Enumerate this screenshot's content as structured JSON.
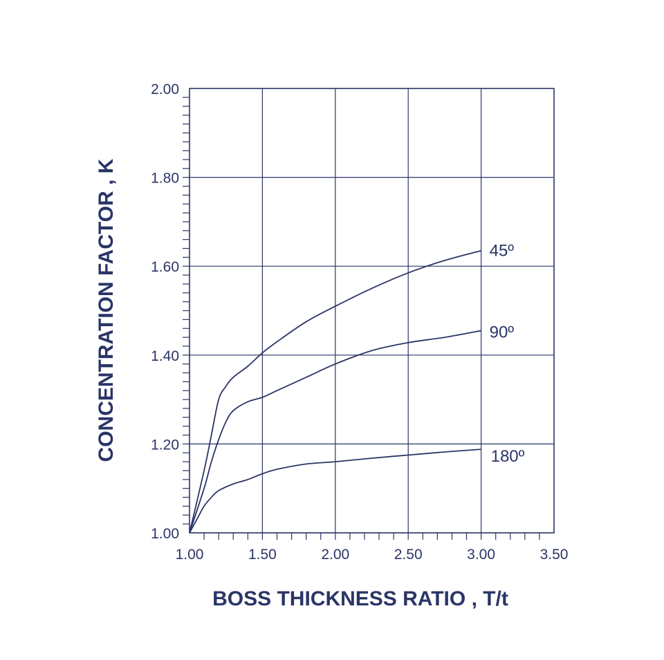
{
  "chart_data": {
    "type": "line",
    "title": "",
    "xlabel": "BOSS THICKNESS RATIO , T/t",
    "ylabel": "CONCENTRATION FACTOR , K",
    "xlim": [
      1.0,
      3.5
    ],
    "ylim": [
      1.0,
      2.0
    ],
    "x_ticks": [
      "1.00",
      "1.50",
      "2.00",
      "2.50",
      "3.00",
      "3.50"
    ],
    "y_ticks": [
      "1.00",
      "1.20",
      "1.40",
      "1.60",
      "1.80",
      "2.00"
    ],
    "grid": true,
    "color": "#2a3466",
    "series": [
      {
        "name": "45º",
        "x": [
          1.0,
          1.1,
          1.15,
          1.2,
          1.25,
          1.3,
          1.4,
          1.5,
          1.6,
          1.8,
          2.0,
          2.25,
          2.5,
          2.75,
          3.0
        ],
        "y": [
          1.0,
          1.14,
          1.22,
          1.3,
          1.33,
          1.35,
          1.375,
          1.405,
          1.43,
          1.475,
          1.51,
          1.55,
          1.585,
          1.613,
          1.635
        ]
      },
      {
        "name": "90º",
        "x": [
          1.0,
          1.1,
          1.15,
          1.2,
          1.25,
          1.3,
          1.4,
          1.5,
          1.6,
          1.8,
          2.0,
          2.25,
          2.5,
          2.75,
          3.0
        ],
        "y": [
          1.0,
          1.1,
          1.16,
          1.21,
          1.25,
          1.275,
          1.295,
          1.305,
          1.32,
          1.35,
          1.38,
          1.41,
          1.428,
          1.44,
          1.455
        ]
      },
      {
        "name": "180º",
        "x": [
          1.0,
          1.05,
          1.1,
          1.15,
          1.2,
          1.3,
          1.4,
          1.5,
          1.6,
          1.8,
          2.0,
          2.25,
          2.5,
          2.75,
          3.0
        ],
        "y": [
          1.0,
          1.03,
          1.06,
          1.08,
          1.095,
          1.11,
          1.12,
          1.133,
          1.143,
          1.155,
          1.16,
          1.168,
          1.175,
          1.182,
          1.188
        ]
      }
    ]
  }
}
